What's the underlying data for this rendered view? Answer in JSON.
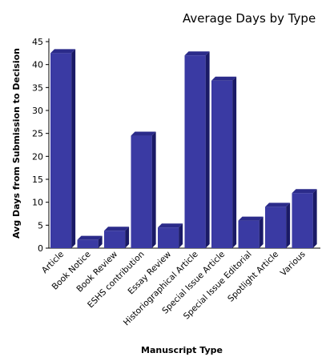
{
  "chart_data": {
    "type": "bar",
    "title": "Average Days by Type",
    "xlabel": "Manuscript Type",
    "ylabel": "Avg Days from Submission to Decision",
    "ylim": [
      0,
      45
    ],
    "yticks": [
      0,
      5,
      10,
      15,
      20,
      25,
      30,
      35,
      40,
      45
    ],
    "grid": false,
    "categories": [
      "Article",
      "Book Notice",
      "Book Review",
      "ESHS contribution",
      "Essay Review",
      "Historiographical Article",
      "Special Issue Article",
      "Special Issue Editorial",
      "Spotlight Article",
      "Various"
    ],
    "values": [
      42.5,
      1.8,
      3.8,
      24.5,
      4.5,
      42,
      36.5,
      6,
      9,
      12
    ],
    "bar_color": "#3a3aa3",
    "bar_top_color": "#2b2b8a",
    "bar_side_color": "#1a1a66"
  }
}
